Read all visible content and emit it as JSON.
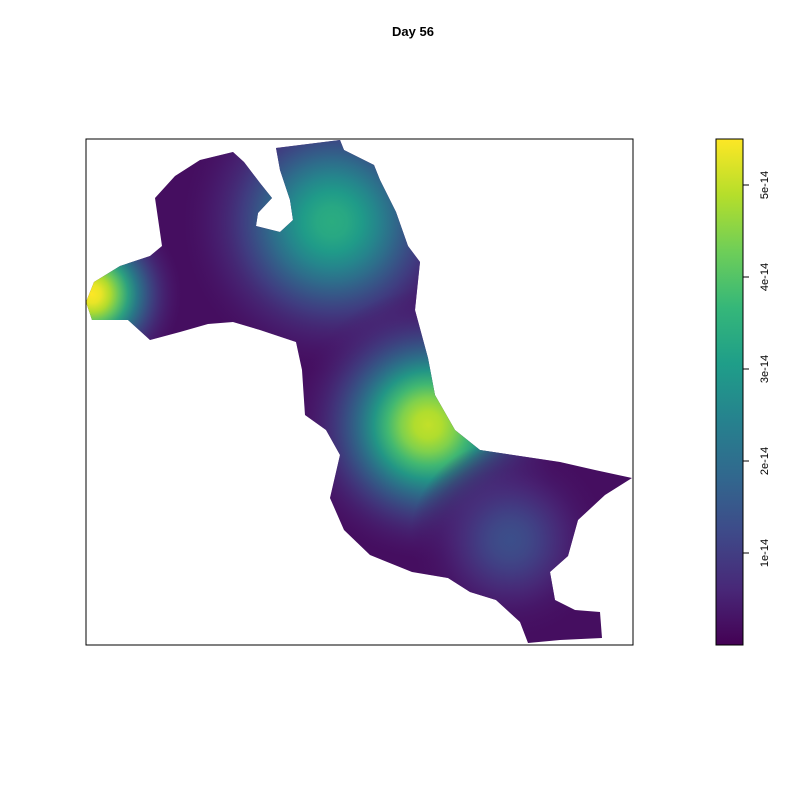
{
  "chart_data": {
    "type": "heatmap",
    "title": "Day 56",
    "colormap": "viridis",
    "colormap_stops": [
      "#440154",
      "#482878",
      "#3e4a89",
      "#31688e",
      "#26828e",
      "#1f9e89",
      "#35b779",
      "#6ece58",
      "#b5de2b",
      "#fde725"
    ],
    "value_range": [
      0,
      5.5e-14
    ],
    "colorbar": {
      "ticks": [
        1e-14,
        2e-14,
        3e-14,
        4e-14,
        5e-14
      ],
      "tick_labels": [
        "1e-14",
        "2e-14",
        "3e-14",
        "4e-14",
        "5e-14"
      ]
    },
    "hotspots": [
      {
        "label": "north-center",
        "peak_value": 3.4e-14
      },
      {
        "label": "center",
        "peak_value": 5e-14
      },
      {
        "label": "west-edge",
        "peak_value": 5.5e-14
      },
      {
        "label": "south-east",
        "peak_value": 1.3e-14
      }
    ],
    "background_value": 2e-15
  }
}
